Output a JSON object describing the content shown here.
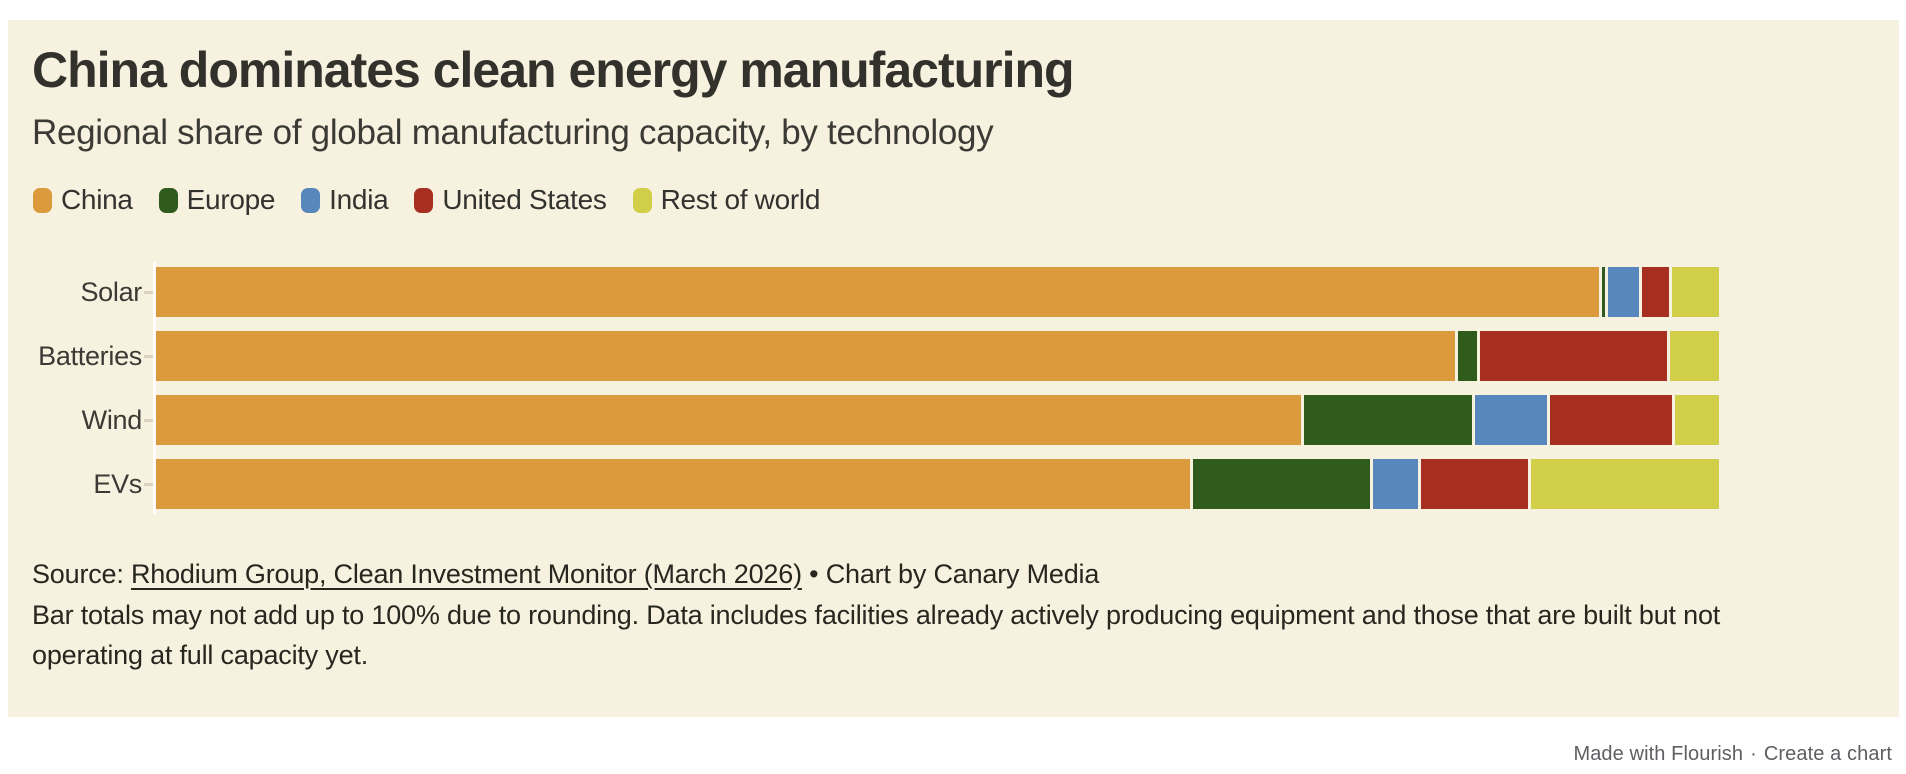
{
  "header": {
    "title": "China dominates clean energy manufacturing",
    "subtitle": "Regional share of global manufacturing capacity, by technology"
  },
  "colors": {
    "background_panel": "#F7F2E0",
    "page_background": "#FFFFFF",
    "title_text": "#32312C",
    "body_text": "#3B3A35",
    "footer_text": "#5F5F63"
  },
  "chart_data": {
    "type": "bar",
    "stacked": true,
    "orientation": "horizontal",
    "unit": "percent of global capacity",
    "xlim": [
      0,
      100
    ],
    "grid": false,
    "legend_position": "top-left",
    "categories": [
      "Solar",
      "Batteries",
      "Wind",
      "EVs"
    ],
    "series": [
      {
        "name": "China",
        "color": "#DB9B3C",
        "values": [
          92,
          83,
          73,
          66
        ]
      },
      {
        "name": "Europe",
        "color": "#2F5B1C",
        "values": [
          0.2,
          1.2,
          10.7,
          11.3
        ]
      },
      {
        "name": "India",
        "color": "#5787BB",
        "values": [
          2,
          0,
          4.6,
          2.9
        ]
      },
      {
        "name": "United States",
        "color": "#A72F21",
        "values": [
          1.7,
          12,
          7.8,
          6.8
        ]
      },
      {
        "name": "Rest of world",
        "color": "#D1CE4A",
        "values": [
          3,
          3.1,
          2.8,
          12
        ]
      }
    ]
  },
  "source": {
    "prefix": "Source: ",
    "link_text": "Rhodium Group, Clean Investment Monitor (March 2026)",
    "suffix": " • Chart by Canary Media",
    "note": "Bar totals may not add up to 100% due to rounding. Data includes facilities already actively producing equipment and those that are built but not operating at full capacity yet."
  },
  "attribution": {
    "made_with": "Made with Flourish",
    "separator": "·",
    "create": "Create a chart"
  }
}
